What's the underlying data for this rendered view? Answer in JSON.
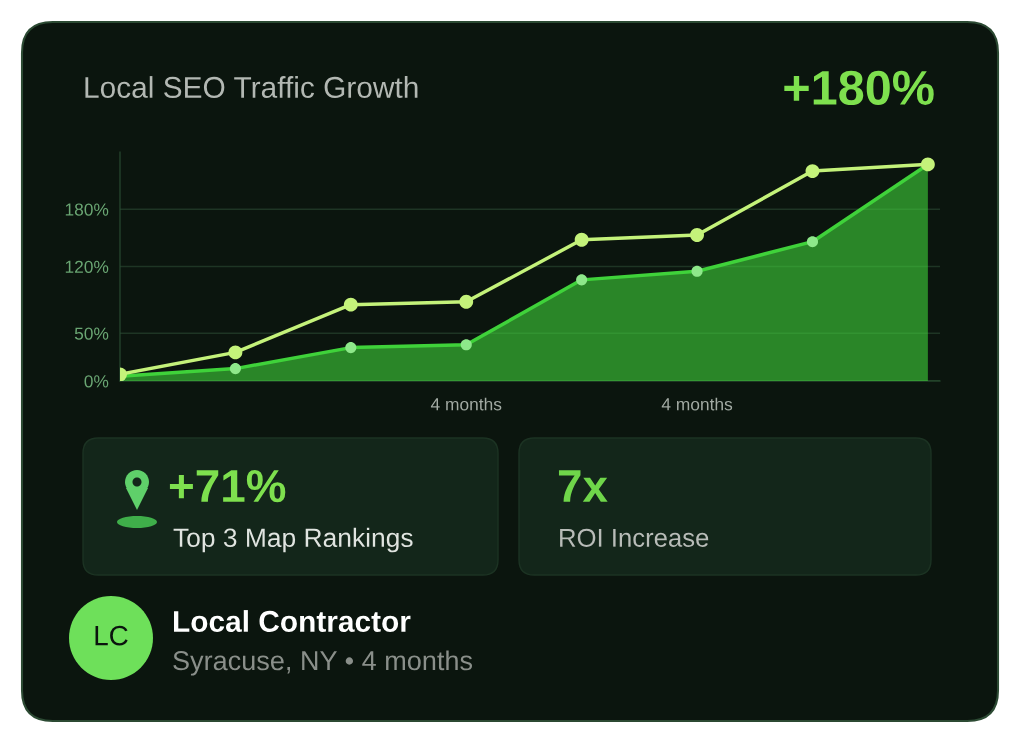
{
  "chart_data": {
    "type": "line",
    "title": "Local SEO Traffic Growth",
    "annotations": [
      "+180%",
      "+71%",
      "Top 3 Map Rankings",
      "7x",
      "ROI Increase",
      "LC",
      "Local Contractor",
      "Syracuse, NY • 4 months"
    ],
    "categories": [
      null,
      null,
      null,
      "4 months",
      null,
      "4 months",
      null,
      null
    ],
    "series": [
      {
        "type": "area",
        "color": "#3fd23a",
        "values": [
          5,
          13,
          35,
          38,
          106,
          115,
          146,
          227
        ]
      },
      {
        "color": "#c4f27a",
        "values": [
          7,
          30,
          80,
          83,
          148,
          153,
          220,
          227
        ]
      }
    ],
    "ylim": [
      0,
      240
    ],
    "yticks": [
      {
        "value": 0,
        "label": "0%"
      },
      {
        "value": 50,
        "label": "50%"
      },
      {
        "value": 120,
        "label": "120%"
      },
      {
        "value": 180,
        "label": "180%"
      }
    ],
    "grid": "y",
    "marker": "circle",
    "line_style": "solid"
  }
}
